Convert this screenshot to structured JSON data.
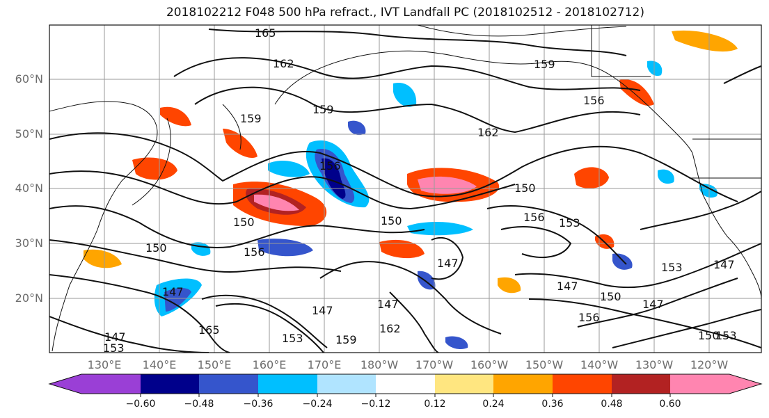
{
  "title": "2018102212 F048 500 hPa refract., IVT Landfall PC (2018102512 - 2018102712)",
  "lat_labels": [
    "60°N",
    "50°N",
    "40°N",
    "30°N",
    "20°N"
  ],
  "lon_labels": [
    "130°E",
    "140°E",
    "150°E",
    "160°E",
    "170°E",
    "180°W",
    "170°W",
    "160°W",
    "150°W",
    "140°W",
    "130°W",
    "120°W"
  ],
  "colorbar": {
    "ticks": [
      "−0.60",
      "−0.48",
      "−0.36",
      "−0.24",
      "−0.12",
      "0.12",
      "0.24",
      "0.36",
      "0.48",
      "0.60"
    ],
    "colors": [
      "#9a3fd6",
      "#00008b",
      "#3555cc",
      "#00bfff",
      "#b0e4ff",
      "#ffffff",
      "#ffe680",
      "#ffa500",
      "#ff4500",
      "#b22222",
      "#ff85b0"
    ]
  },
  "contour_labels": [
    "165",
    "162",
    "159",
    "159",
    "159",
    "162",
    "156",
    "156",
    "150",
    "150",
    "156",
    "153",
    "150",
    "150",
    "147",
    "147",
    "147",
    "150",
    "147",
    "153",
    "147",
    "147",
    "153",
    "162",
    "159",
    "156",
    "153",
    "150",
    "147",
    "147",
    "153",
    "165",
    "156"
  ]
}
